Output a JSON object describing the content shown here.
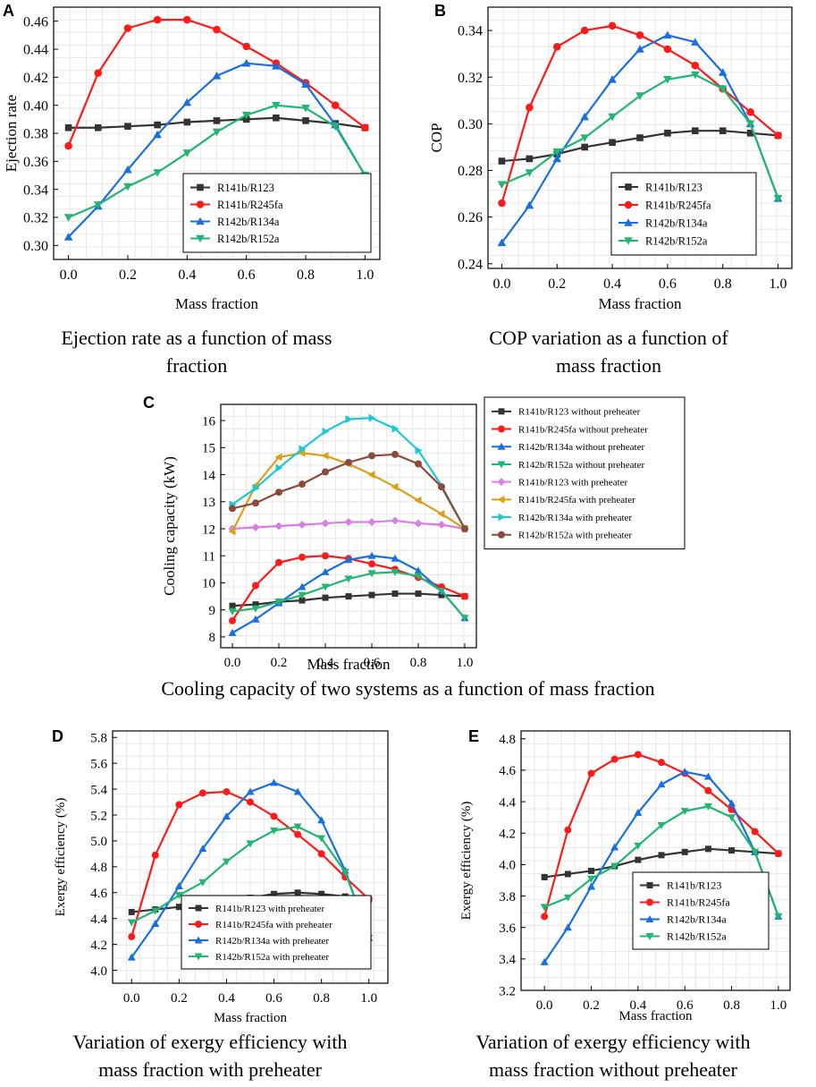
{
  "chart_data": [
    {
      "id": "A",
      "type": "line",
      "panel_label": "A",
      "caption": "Ejection rate as a function of mass fraction",
      "caption_lines": [
        "Ejection rate as a function of mass",
        "fraction"
      ],
      "xlabel": "Mass fraction",
      "ylabel": "Ejection rate",
      "xlim": [
        -0.05,
        1.05
      ],
      "ylim": [
        0.29,
        0.47
      ],
      "xticks": [
        0.0,
        0.2,
        0.4,
        0.6,
        0.8,
        1.0
      ],
      "yticks": [
        0.3,
        0.32,
        0.34,
        0.36,
        0.38,
        0.4,
        0.42,
        0.44,
        0.46
      ],
      "ytick_decimals": 2,
      "legend_position": "lower-center",
      "x": [
        0.0,
        0.1,
        0.2,
        0.3,
        0.4,
        0.5,
        0.6,
        0.7,
        0.8,
        0.9,
        1.0
      ],
      "series": [
        {
          "name": "R141b/R123",
          "color": "#333333",
          "marker": "square",
          "values": [
            0.384,
            0.384,
            0.385,
            0.386,
            0.388,
            0.389,
            0.39,
            0.391,
            0.389,
            0.387,
            0.384
          ]
        },
        {
          "name": "R141b/R245fa",
          "color": "#ff1a1a",
          "marker": "circle",
          "values": [
            0.371,
            0.423,
            0.455,
            0.461,
            0.461,
            0.454,
            0.442,
            0.43,
            0.416,
            0.4,
            0.384
          ]
        },
        {
          "name": "R142b/R134a",
          "color": "#1a6fe0",
          "marker": "triangle-up",
          "values": [
            0.306,
            0.328,
            0.354,
            0.379,
            0.402,
            0.421,
            0.43,
            0.428,
            0.415,
            0.386,
            0.35
          ]
        },
        {
          "name": "R142b/R152a",
          "color": "#22b573",
          "marker": "triangle-down",
          "values": [
            0.32,
            0.329,
            0.342,
            0.352,
            0.366,
            0.381,
            0.393,
            0.4,
            0.398,
            0.385,
            0.35
          ]
        }
      ]
    },
    {
      "id": "B",
      "type": "line",
      "panel_label": "B",
      "caption": "COP variation as a function of mass fraction",
      "caption_lines": [
        "COP variation as a function of",
        "mass fraction"
      ],
      "xlabel": "Mass fraction",
      "ylabel": "COP",
      "xlim": [
        -0.05,
        1.05
      ],
      "ylim": [
        0.238,
        0.35
      ],
      "xticks": [
        0.0,
        0.2,
        0.4,
        0.6,
        0.8,
        1.0
      ],
      "yticks": [
        0.24,
        0.26,
        0.28,
        0.3,
        0.32,
        0.34
      ],
      "ytick_decimals": 2,
      "legend_position": "lower-center",
      "x": [
        0.0,
        0.1,
        0.2,
        0.3,
        0.4,
        0.5,
        0.6,
        0.7,
        0.8,
        0.9,
        1.0
      ],
      "series": [
        {
          "name": "R141b/R123",
          "color": "#333333",
          "marker": "square",
          "values": [
            0.284,
            0.285,
            0.287,
            0.29,
            0.292,
            0.294,
            0.296,
            0.297,
            0.297,
            0.296,
            0.295
          ]
        },
        {
          "name": "R141b/R245fa",
          "color": "#ff1a1a",
          "marker": "circle",
          "values": [
            0.266,
            0.307,
            0.333,
            0.34,
            0.342,
            0.338,
            0.332,
            0.325,
            0.315,
            0.305,
            0.295
          ]
        },
        {
          "name": "R142b/R134a",
          "color": "#1a6fe0",
          "marker": "triangle-up",
          "values": [
            0.249,
            0.265,
            0.285,
            0.303,
            0.319,
            0.332,
            0.338,
            0.335,
            0.322,
            0.3,
            0.268
          ]
        },
        {
          "name": "R142b/R152a",
          "color": "#22b573",
          "marker": "triangle-down",
          "values": [
            0.274,
            0.279,
            0.288,
            0.294,
            0.303,
            0.312,
            0.319,
            0.321,
            0.315,
            0.3,
            0.268
          ]
        }
      ]
    },
    {
      "id": "C",
      "type": "line",
      "panel_label": "C",
      "caption": "Cooling capacity of two systems as a function of mass fraction",
      "caption_lines": [
        "Cooling capacity of two systems as a function of mass fraction"
      ],
      "xlabel": "Mass fraction",
      "ylabel": "Cooling capacity (kW)",
      "xlim": [
        -0.05,
        1.05
      ],
      "ylim": [
        7.6,
        16.6
      ],
      "xticks": [
        0.0,
        0.2,
        0.4,
        0.6,
        0.8,
        1.0
      ],
      "yticks": [
        8,
        9,
        10,
        11,
        12,
        13,
        14,
        15,
        16
      ],
      "ytick_decimals": 0,
      "legend_position": "right-outside",
      "x": [
        0.0,
        0.1,
        0.2,
        0.3,
        0.4,
        0.5,
        0.6,
        0.7,
        0.8,
        0.9,
        1.0
      ],
      "series": [
        {
          "name": "R141b/R123 without preheater",
          "color": "#333333",
          "marker": "square",
          "values": [
            9.15,
            9.2,
            9.3,
            9.35,
            9.45,
            9.5,
            9.55,
            9.6,
            9.6,
            9.55,
            9.5
          ]
        },
        {
          "name": "R141b/R245fa without preheater",
          "color": "#ff1a1a",
          "marker": "circle",
          "values": [
            8.6,
            9.9,
            10.75,
            10.95,
            11.0,
            10.9,
            10.7,
            10.5,
            10.2,
            9.85,
            9.5
          ]
        },
        {
          "name": "R142b/R134a without preheater",
          "color": "#1a6fe0",
          "marker": "triangle-up",
          "values": [
            8.15,
            8.65,
            9.25,
            9.85,
            10.4,
            10.85,
            11.0,
            10.9,
            10.45,
            9.7,
            8.7
          ]
        },
        {
          "name": "R142b/R152a without preheater",
          "color": "#22b573",
          "marker": "triangle-down",
          "values": [
            8.95,
            9.05,
            9.3,
            9.55,
            9.85,
            10.15,
            10.35,
            10.4,
            10.25,
            9.7,
            8.7
          ]
        },
        {
          "name": "R141b/R123 with preheater",
          "color": "#d67fe6",
          "marker": "diamond",
          "values": [
            12.0,
            12.05,
            12.1,
            12.15,
            12.2,
            12.25,
            12.25,
            12.3,
            12.2,
            12.15,
            12.0
          ]
        },
        {
          "name": "R141b/R245fa with preheater",
          "color": "#d9a019",
          "marker": "triangle-left",
          "values": [
            11.9,
            13.6,
            14.65,
            14.8,
            14.7,
            14.4,
            14.0,
            13.55,
            13.05,
            12.55,
            12.0
          ]
        },
        {
          "name": "R142b/R134a with preheater",
          "color": "#1fc8d6",
          "marker": "triangle-right",
          "values": [
            12.9,
            13.5,
            14.25,
            14.95,
            15.6,
            16.05,
            16.1,
            15.7,
            14.9,
            13.6,
            12.0
          ]
        },
        {
          "name": "R142b/R152a with preheater",
          "color": "#8c4a3c",
          "marker": "circle",
          "values": [
            12.75,
            12.95,
            13.35,
            13.65,
            14.1,
            14.45,
            14.7,
            14.75,
            14.4,
            13.55,
            12.0
          ]
        }
      ]
    },
    {
      "id": "D",
      "type": "line",
      "panel_label": "D",
      "caption": "Variation of exergy efficiency with mass fraction with preheater",
      "caption_lines": [
        "Variation of exergy efficiency with",
        "mass fraction with preheater"
      ],
      "xlabel": "Mass fraction",
      "ylabel": "Exergy efficiency (%)",
      "xlim": [
        -0.08,
        1.08
      ],
      "ylim": [
        3.9,
        5.85
      ],
      "xticks": [
        0.0,
        0.2,
        0.4,
        0.6,
        0.8,
        1.0
      ],
      "yticks": [
        4.0,
        4.2,
        4.4,
        4.6,
        4.8,
        5.0,
        5.2,
        5.4,
        5.6,
        5.8
      ],
      "ytick_decimals": 1,
      "legend_position": "lower-center",
      "x": [
        0.0,
        0.1,
        0.2,
        0.3,
        0.4,
        0.5,
        0.6,
        0.7,
        0.8,
        0.9,
        1.0
      ],
      "series": [
        {
          "name": "R141b/R123 with preheater",
          "color": "#333333",
          "marker": "square",
          "values": [
            4.45,
            4.47,
            4.49,
            4.51,
            4.54,
            4.56,
            4.59,
            4.6,
            4.59,
            4.57,
            4.55
          ]
        },
        {
          "name": "R141b/R245fa with preheater",
          "color": "#ff1a1a",
          "marker": "circle",
          "values": [
            4.26,
            4.89,
            5.28,
            5.37,
            5.38,
            5.3,
            5.19,
            5.05,
            4.9,
            4.72,
            4.55
          ]
        },
        {
          "name": "R142b/R134a with preheater",
          "color": "#1a6fe0",
          "marker": "triangle-up",
          "values": [
            4.1,
            4.36,
            4.65,
            4.94,
            5.19,
            5.38,
            5.45,
            5.38,
            5.16,
            4.77,
            4.25
          ]
        },
        {
          "name": "R142b/R152a with preheater",
          "color": "#22b573",
          "marker": "triangle-down",
          "values": [
            4.37,
            4.46,
            4.58,
            4.68,
            4.84,
            4.98,
            5.08,
            5.11,
            5.02,
            4.76,
            4.25
          ]
        }
      ]
    },
    {
      "id": "E",
      "type": "line",
      "panel_label": "E",
      "caption": "Variation of exergy efficiency with mass fraction without preheater",
      "caption_lines": [
        "Variation of exergy efficiency with",
        "mass fraction without preheater"
      ],
      "xlabel": "Mass fraction",
      "ylabel": "Exergy efficiency (%)",
      "xlim": [
        -0.1,
        1.05
      ],
      "ylim": [
        3.2,
        4.85
      ],
      "xticks": [
        0.0,
        0.2,
        0.4,
        0.6,
        0.8,
        1.0
      ],
      "yticks": [
        3.2,
        3.4,
        3.6,
        3.8,
        4.0,
        4.2,
        4.4,
        4.6,
        4.8
      ],
      "ytick_decimals": 1,
      "legend_position": "lower-center",
      "x": [
        0.0,
        0.1,
        0.2,
        0.3,
        0.4,
        0.5,
        0.6,
        0.7,
        0.8,
        0.9,
        1.0
      ],
      "series": [
        {
          "name": "R141b/R123",
          "color": "#333333",
          "marker": "square",
          "values": [
            3.92,
            3.94,
            3.96,
            3.99,
            4.03,
            4.06,
            4.08,
            4.1,
            4.09,
            4.08,
            4.07
          ]
        },
        {
          "name": "R141b/R245fa",
          "color": "#ff1a1a",
          "marker": "circle",
          "values": [
            3.67,
            4.22,
            4.58,
            4.67,
            4.7,
            4.65,
            4.58,
            4.47,
            4.35,
            4.21,
            4.07
          ]
        },
        {
          "name": "R142b/R134a",
          "color": "#1a6fe0",
          "marker": "triangle-up",
          "values": [
            3.38,
            3.6,
            3.86,
            4.11,
            4.33,
            4.51,
            4.59,
            4.56,
            4.39,
            4.08,
            3.67
          ]
        },
        {
          "name": "R142b/R152a",
          "color": "#22b573",
          "marker": "triangle-down",
          "values": [
            3.73,
            3.79,
            3.91,
            3.99,
            4.12,
            4.25,
            4.34,
            4.37,
            4.3,
            4.08,
            3.67
          ]
        }
      ]
    }
  ]
}
